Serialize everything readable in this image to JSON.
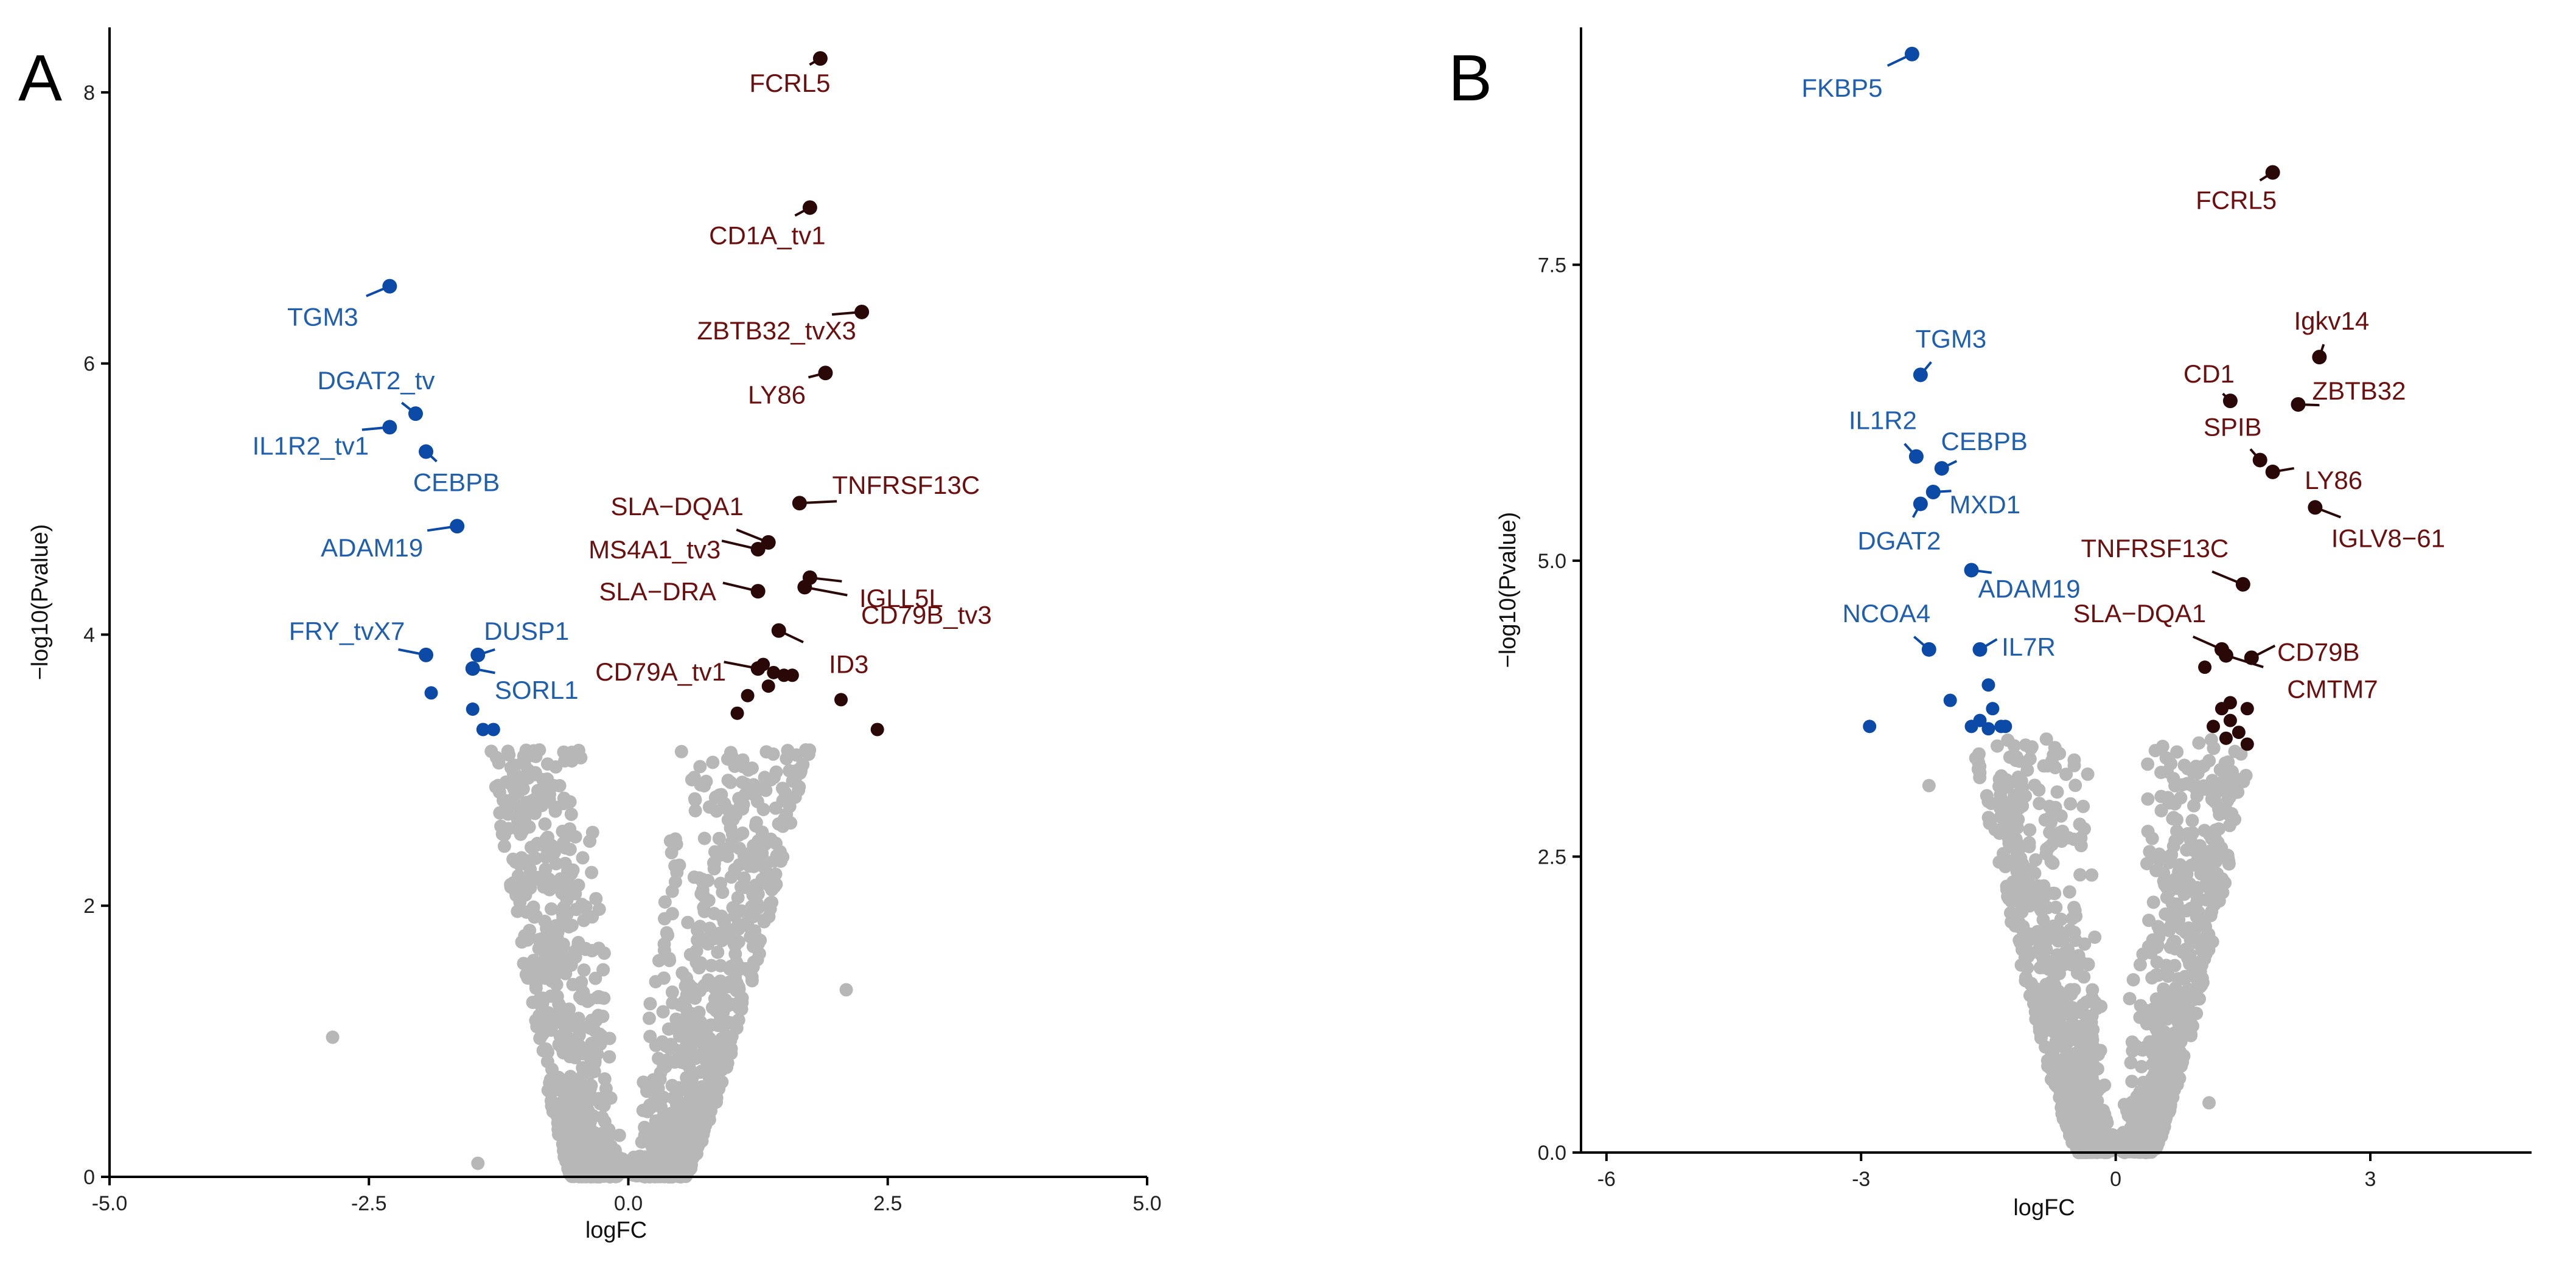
{
  "colors": {
    "up": "#6b0f0f",
    "up_point": "#2a0808",
    "down": "#1f5fae",
    "down_point": "#0b4aa6",
    "ns": "#b7b7b7",
    "axis": "#000000"
  },
  "chart_data": [
    {
      "type": "scatter",
      "panel": "A",
      "title": "",
      "xlabel": "logFC",
      "ylabel": "−log10(Pvalue)",
      "xlim": [
        -5.0,
        5.0
      ],
      "ylim": [
        0,
        8.3
      ],
      "xticks": [
        -5.0,
        -2.5,
        0.0,
        2.5,
        5.0
      ],
      "xtick_labels": [
        "-5.0",
        "-2.5",
        "0.0",
        "2.5",
        "5.0"
      ],
      "yticks": [
        0,
        2,
        4,
        6,
        8
      ],
      "ytick_labels": [
        "0",
        "2",
        "4",
        "6",
        "8"
      ],
      "labeled_points": [
        {
          "gene": "FCRL5",
          "x": 1.85,
          "y": 8.25,
          "dir": "up"
        },
        {
          "gene": "CD1A_tv1",
          "x": 1.75,
          "y": 7.15,
          "dir": "up"
        },
        {
          "gene": "ZBTB32_tvX3",
          "x": 2.25,
          "y": 6.38,
          "dir": "up"
        },
        {
          "gene": "LY86",
          "x": 1.9,
          "y": 5.93,
          "dir": "up"
        },
        {
          "gene": "TNFRSF13C",
          "x": 1.65,
          "y": 4.97,
          "dir": "up"
        },
        {
          "gene": "SLA−DQA1",
          "x": 1.35,
          "y": 4.68,
          "dir": "up"
        },
        {
          "gene": "MS4A1_tv3",
          "x": 1.25,
          "y": 4.63,
          "dir": "up"
        },
        {
          "gene": "IGLL5L",
          "x": 1.75,
          "y": 4.42,
          "dir": "up"
        },
        {
          "gene": "SLA−DRA",
          "x": 1.25,
          "y": 4.32,
          "dir": "up"
        },
        {
          "gene": "CD79B_tv3",
          "x": 1.7,
          "y": 4.35,
          "dir": "up"
        },
        {
          "gene": "CD79A_tv1",
          "x": 1.25,
          "y": 3.75,
          "dir": "up"
        },
        {
          "gene": "ID3",
          "x": 1.45,
          "y": 4.03,
          "dir": "up"
        },
        {
          "gene": "TGM3",
          "x": -2.3,
          "y": 6.57,
          "dir": "down"
        },
        {
          "gene": "DGAT2_tv",
          "x": -2.05,
          "y": 5.63,
          "dir": "down"
        },
        {
          "gene": "IL1R2_tv1",
          "x": -2.3,
          "y": 5.53,
          "dir": "down"
        },
        {
          "gene": "CEBPB",
          "x": -1.95,
          "y": 5.35,
          "dir": "down"
        },
        {
          "gene": "ADAM19",
          "x": -1.65,
          "y": 4.8,
          "dir": "down"
        },
        {
          "gene": "FRY_tvX7",
          "x": -1.95,
          "y": 3.85,
          "dir": "down"
        },
        {
          "gene": "DUSP1",
          "x": -1.45,
          "y": 3.85,
          "dir": "down"
        },
        {
          "gene": "SORL1",
          "x": -1.5,
          "y": 3.75,
          "dir": "down"
        }
      ],
      "other_significant": {
        "up": [
          [
            1.35,
            3.62
          ],
          [
            1.5,
            3.7
          ],
          [
            1.58,
            3.7
          ],
          [
            1.15,
            3.55
          ],
          [
            1.05,
            3.42
          ],
          [
            1.4,
            3.72
          ],
          [
            2.4,
            3.3
          ],
          [
            2.05,
            3.52
          ],
          [
            1.3,
            3.78
          ]
        ],
        "down": [
          [
            -1.9,
            3.57
          ],
          [
            -1.5,
            3.45
          ],
          [
            -1.4,
            3.3
          ],
          [
            -1.3,
            3.3
          ]
        ]
      },
      "ns_extra": [
        [
          -2.85,
          1.03
        ],
        [
          -1.45,
          0.1
        ],
        [
          2.1,
          1.38
        ]
      ],
      "ns_envelope": {
        "left_x_at_top": -1.35,
        "right_x_at_top": 1.75,
        "y_top": 3.15,
        "x_min": -0.55,
        "x_max": 0.55
      }
    },
    {
      "type": "scatter",
      "panel": "B",
      "title": "",
      "xlabel": "logFC",
      "ylabel": "−log10(Pvalue)",
      "xlim": [
        -6.3,
        4.9
      ],
      "ylim": [
        0,
        9.3
      ],
      "xticks": [
        -6,
        -3,
        0,
        3
      ],
      "xtick_labels": [
        "-6",
        "-3",
        "0",
        "3"
      ],
      "yticks": [
        0.0,
        2.5,
        5.0,
        7.5
      ],
      "ytick_labels": [
        "0.0",
        "2.5",
        "5.0",
        "7.5"
      ],
      "labeled_points": [
        {
          "gene": "FKBP5",
          "x": -2.4,
          "y": 9.28,
          "dir": "down"
        },
        {
          "gene": "FCRL5",
          "x": 1.85,
          "y": 8.28,
          "dir": "up"
        },
        {
          "gene": "Igkv14",
          "x": 2.4,
          "y": 6.72,
          "dir": "up"
        },
        {
          "gene": "CD1",
          "x": 1.35,
          "y": 6.35,
          "dir": "up"
        },
        {
          "gene": "ZBTB32",
          "x": 2.15,
          "y": 6.32,
          "dir": "up"
        },
        {
          "gene": "SPIB",
          "x": 1.7,
          "y": 5.85,
          "dir": "up"
        },
        {
          "gene": "LY86",
          "x": 1.85,
          "y": 5.75,
          "dir": "up"
        },
        {
          "gene": "IGLV8−61",
          "x": 2.35,
          "y": 5.45,
          "dir": "up"
        },
        {
          "gene": "TNFRSF13C",
          "x": 1.5,
          "y": 4.8,
          "dir": "up"
        },
        {
          "gene": "SLA−DQA1",
          "x": 1.25,
          "y": 4.25,
          "dir": "up"
        },
        {
          "gene": "CD79B",
          "x": 1.6,
          "y": 4.18,
          "dir": "up"
        },
        {
          "gene": "CMTM7",
          "x": 1.3,
          "y": 4.2,
          "dir": "up"
        },
        {
          "gene": "TGM3",
          "x": -2.3,
          "y": 6.57,
          "dir": "down"
        },
        {
          "gene": "IL1R2",
          "x": -2.35,
          "y": 5.88,
          "dir": "down"
        },
        {
          "gene": "CEBPB",
          "x": -2.05,
          "y": 5.78,
          "dir": "down"
        },
        {
          "gene": "MXD1",
          "x": -2.15,
          "y": 5.58,
          "dir": "down"
        },
        {
          "gene": "DGAT2",
          "x": -2.3,
          "y": 5.48,
          "dir": "down"
        },
        {
          "gene": "ADAM19",
          "x": -1.7,
          "y": 4.92,
          "dir": "down"
        },
        {
          "gene": "NCOA4",
          "x": -2.2,
          "y": 4.25,
          "dir": "down"
        },
        {
          "gene": "IL7R",
          "x": -1.6,
          "y": 4.25,
          "dir": "down"
        }
      ],
      "other_significant": {
        "up": [
          [
            1.05,
            4.1
          ],
          [
            1.35,
            3.8
          ],
          [
            1.15,
            3.6
          ],
          [
            1.3,
            3.5
          ],
          [
            1.25,
            3.75
          ],
          [
            1.45,
            3.55
          ],
          [
            1.35,
            3.65
          ],
          [
            1.55,
            3.75
          ],
          [
            1.55,
            3.45
          ]
        ],
        "down": [
          [
            -2.9,
            3.6
          ],
          [
            -1.95,
            3.82
          ],
          [
            -1.5,
            3.95
          ],
          [
            -1.6,
            3.65
          ],
          [
            -1.5,
            3.58
          ],
          [
            -1.35,
            3.6
          ],
          [
            -1.7,
            3.6
          ],
          [
            -1.45,
            3.75
          ],
          [
            -1.3,
            3.6
          ]
        ]
      },
      "ns_extra": [
        [
          -2.2,
          3.1
        ],
        [
          1.1,
          0.42
        ]
      ],
      "ns_envelope": {
        "left_x_at_top": -1.7,
        "right_x_at_top": 1.65,
        "y_top": 3.5,
        "x_min": -0.45,
        "x_max": 0.45
      }
    }
  ]
}
